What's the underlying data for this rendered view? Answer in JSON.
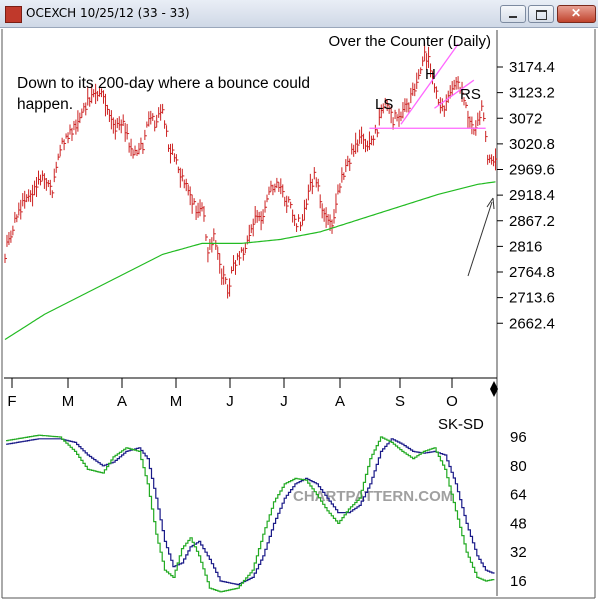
{
  "window": {
    "title": "OCEXCH 10/25/12 (33 - 33)"
  },
  "colors": {
    "bars": "#cc2222",
    "ma": "#22bb22",
    "pattern": "#ff66ff",
    "stoch_k": "#22aa22",
    "stoch_d": "#1a1a88"
  },
  "chart_data": [
    {
      "type": "bar",
      "title": "Over the Counter (Daily)",
      "annotation": "Down to its 200-day where a bounce could happen.",
      "pattern_labels": [
        "LS",
        "H",
        "RS"
      ],
      "months": [
        "F",
        "M",
        "A",
        "M",
        "J",
        "J",
        "A",
        "S",
        "O"
      ],
      "y_ticks": [
        3174.4,
        3123.2,
        3072,
        3020.8,
        2969.6,
        2918.4,
        2867.2,
        2816,
        2764.8,
        2713.6,
        2662.4
      ],
      "ylim": [
        2625,
        3220
      ],
      "neckline": 3052,
      "close_anchors": [
        [
          0,
          2800
        ],
        [
          5,
          2870
        ],
        [
          10,
          2910
        ],
        [
          15,
          2930
        ],
        [
          20,
          2960
        ],
        [
          24,
          2930
        ],
        [
          27,
          3000
        ],
        [
          32,
          3040
        ],
        [
          38,
          3070
        ],
        [
          42,
          3110
        ],
        [
          46,
          3130
        ],
        [
          50,
          3120
        ],
        [
          52,
          3080
        ],
        [
          56,
          3050
        ],
        [
          60,
          3070
        ],
        [
          63,
          3020
        ],
        [
          67,
          3000
        ],
        [
          70,
          3020
        ],
        [
          73,
          3080
        ],
        [
          76,
          3060
        ],
        [
          80,
          3090
        ],
        [
          83,
          3020
        ],
        [
          87,
          2990
        ],
        [
          90,
          2950
        ],
        [
          94,
          2920
        ],
        [
          98,
          2880
        ],
        [
          100,
          2900
        ],
        [
          103,
          2810
        ],
        [
          106,
          2840
        ],
        [
          110,
          2760
        ],
        [
          113,
          2730
        ],
        [
          116,
          2780
        ],
        [
          120,
          2800
        ],
        [
          124,
          2830
        ],
        [
          127,
          2880
        ],
        [
          130,
          2860
        ],
        [
          134,
          2920
        ],
        [
          138,
          2950
        ],
        [
          142,
          2910
        ],
        [
          145,
          2900
        ],
        [
          148,
          2860
        ],
        [
          151,
          2870
        ],
        [
          154,
          2920
        ],
        [
          157,
          2960
        ],
        [
          160,
          2910
        ],
        [
          163,
          2870
        ],
        [
          166,
          2860
        ],
        [
          170,
          2940
        ],
        [
          174,
          2980
        ],
        [
          178,
          3020
        ],
        [
          181,
          3030
        ],
        [
          185,
          3020
        ],
        [
          189,
          3050
        ],
        [
          193,
          3110
        ],
        [
          197,
          3070
        ],
        [
          201,
          3080
        ],
        [
          205,
          3100
        ],
        [
          209,
          3150
        ],
        [
          212,
          3190
        ],
        [
          215,
          3200
        ],
        [
          218,
          3130
        ],
        [
          222,
          3090
        ],
        [
          226,
          3120
        ],
        [
          229,
          3150
        ],
        [
          232,
          3130
        ],
        [
          235,
          3080
        ],
        [
          239,
          3050
        ],
        [
          242,
          3100
        ],
        [
          245,
          3000
        ],
        [
          249,
          2980
        ]
      ],
      "ma200_anchors": [
        [
          0,
          2630
        ],
        [
          20,
          2680
        ],
        [
          40,
          2720
        ],
        [
          60,
          2760
        ],
        [
          80,
          2800
        ],
        [
          100,
          2822
        ],
        [
          120,
          2822
        ],
        [
          140,
          2830
        ],
        [
          160,
          2845
        ],
        [
          180,
          2870
        ],
        [
          200,
          2895
        ],
        [
          220,
          2920
        ],
        [
          240,
          2940
        ],
        [
          249,
          2945
        ]
      ]
    },
    {
      "type": "line",
      "title": "SK-SD",
      "y_ticks": [
        96,
        80,
        64,
        48,
        32,
        16
      ],
      "ylim": [
        12,
        100
      ],
      "watermark": "CHARTPATTERN.COM",
      "series": [
        {
          "key": "k",
          "anchors": [
            [
              0,
              94
            ],
            [
              15,
              97
            ],
            [
              25,
              96
            ],
            [
              32,
              88
            ],
            [
              38,
              78
            ],
            [
              45,
              76
            ],
            [
              50,
              85
            ],
            [
              56,
              90
            ],
            [
              62,
              88
            ],
            [
              66,
              70
            ],
            [
              70,
              42
            ],
            [
              74,
              22
            ],
            [
              78,
              18
            ],
            [
              82,
              34
            ],
            [
              86,
              40
            ],
            [
              90,
              30
            ],
            [
              95,
              12
            ],
            [
              100,
              10
            ],
            [
              108,
              12
            ],
            [
              115,
              22
            ],
            [
              120,
              42
            ],
            [
              125,
              60
            ],
            [
              130,
              70
            ],
            [
              135,
              73
            ],
            [
              140,
              72
            ],
            [
              145,
              64
            ],
            [
              150,
              55
            ],
            [
              155,
              48
            ],
            [
              160,
              56
            ],
            [
              165,
              62
            ],
            [
              170,
              84
            ],
            [
              175,
              96
            ],
            [
              180,
              93
            ],
            [
              185,
              88
            ],
            [
              190,
              84
            ],
            [
              195,
              88
            ],
            [
              200,
              90
            ],
            [
              205,
              78
            ],
            [
              210,
              55
            ],
            [
              215,
              32
            ],
            [
              220,
              18
            ],
            [
              224,
              16
            ],
            [
              228,
              17
            ]
          ]
        },
        {
          "key": "d",
          "anchors": [
            [
              0,
              92
            ],
            [
              15,
              95
            ],
            [
              25,
              95
            ],
            [
              32,
              93
            ],
            [
              38,
              86
            ],
            [
              45,
              80
            ],
            [
              50,
              82
            ],
            [
              56,
              88
            ],
            [
              62,
              90
            ],
            [
              66,
              84
            ],
            [
              70,
              62
            ],
            [
              74,
              38
            ],
            [
              78,
              24
            ],
            [
              82,
              26
            ],
            [
              86,
              35
            ],
            [
              90,
              38
            ],
            [
              95,
              28
            ],
            [
              100,
              16
            ],
            [
              108,
              14
            ],
            [
              115,
              18
            ],
            [
              120,
              30
            ],
            [
              125,
              48
            ],
            [
              130,
              62
            ],
            [
              135,
              70
            ],
            [
              140,
              73
            ],
            [
              145,
              70
            ],
            [
              150,
              62
            ],
            [
              155,
              54
            ],
            [
              160,
              54
            ],
            [
              165,
              58
            ],
            [
              170,
              70
            ],
            [
              175,
              88
            ],
            [
              180,
              95
            ],
            [
              185,
              92
            ],
            [
              190,
              88
            ],
            [
              195,
              87
            ],
            [
              200,
              88
            ],
            [
              205,
              86
            ],
            [
              210,
              70
            ],
            [
              215,
              48
            ],
            [
              220,
              30
            ],
            [
              224,
              22
            ],
            [
              228,
              20
            ]
          ]
        }
      ]
    }
  ]
}
